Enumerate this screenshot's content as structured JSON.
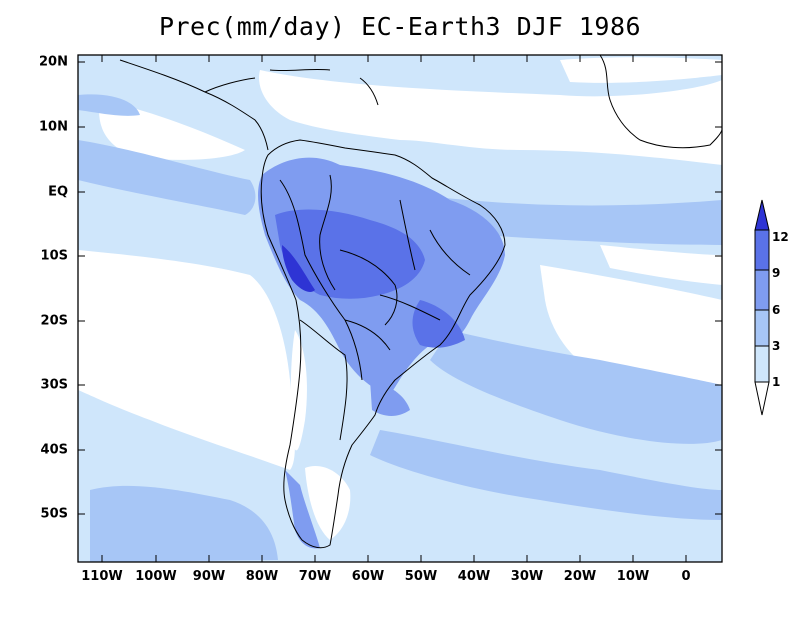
{
  "title": "Prec(mm/day) EC-Earth3 DJF 1986",
  "axes": {
    "lat_labels": [
      "20N",
      "10N",
      "EQ",
      "10S",
      "20S",
      "30S",
      "40S",
      "50S"
    ],
    "lon_labels": [
      "110W",
      "100W",
      "90W",
      "80W",
      "70W",
      "60W",
      "50W",
      "40W",
      "30W",
      "20W",
      "10W",
      "0"
    ]
  },
  "colorbar": {
    "levels": [
      "1",
      "3",
      "6",
      "9",
      "12"
    ],
    "colors": [
      "#ffffff",
      "#cfe6fb",
      "#a7c6f6",
      "#7f9cf0",
      "#5a72e8",
      "#2e34d4"
    ]
  },
  "map": {
    "lon_range": [
      -115,
      6
    ],
    "lat_range": [
      21.5,
      -57.5
    ],
    "ocean_color": "#cfe6fb",
    "land_outline_color": "#000000"
  }
}
